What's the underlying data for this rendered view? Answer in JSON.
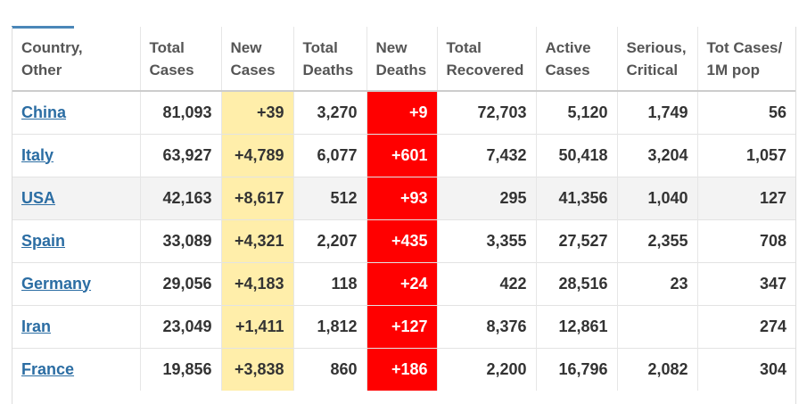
{
  "table": {
    "columns": [
      {
        "key": "country",
        "line1": "Country,",
        "line2": "Other"
      },
      {
        "key": "total_cases",
        "line1": "Total",
        "line2": "Cases"
      },
      {
        "key": "new_cases",
        "line1": "New",
        "line2": "Cases"
      },
      {
        "key": "total_deaths",
        "line1": "Total",
        "line2": "Deaths"
      },
      {
        "key": "new_deaths",
        "line1": "New",
        "line2": "Deaths"
      },
      {
        "key": "total_recovered",
        "line1": "Total",
        "line2": "Recovered"
      },
      {
        "key": "active_cases",
        "line1": "Active",
        "line2": "Cases"
      },
      {
        "key": "serious_critical",
        "line1": "Serious,",
        "line2": "Critical"
      },
      {
        "key": "tot_cases_per_1m",
        "line1": "Tot Cases/",
        "line2": "1M pop"
      }
    ],
    "rows": [
      {
        "country": "China",
        "total_cases": "81,093",
        "new_cases": "+39",
        "total_deaths": "3,270",
        "new_deaths": "+9",
        "total_recovered": "72,703",
        "active_cases": "5,120",
        "serious_critical": "1,749",
        "tot_cases_per_1m": "56"
      },
      {
        "country": "Italy",
        "total_cases": "63,927",
        "new_cases": "+4,789",
        "total_deaths": "6,077",
        "new_deaths": "+601",
        "total_recovered": "7,432",
        "active_cases": "50,418",
        "serious_critical": "3,204",
        "tot_cases_per_1m": "1,057"
      },
      {
        "country": "USA",
        "total_cases": "42,163",
        "new_cases": "+8,617",
        "total_deaths": "512",
        "new_deaths": "+93",
        "total_recovered": "295",
        "active_cases": "41,356",
        "serious_critical": "1,040",
        "tot_cases_per_1m": "127"
      },
      {
        "country": "Spain",
        "total_cases": "33,089",
        "new_cases": "+4,321",
        "total_deaths": "2,207",
        "new_deaths": "+435",
        "total_recovered": "3,355",
        "active_cases": "27,527",
        "serious_critical": "2,355",
        "tot_cases_per_1m": "708"
      },
      {
        "country": "Germany",
        "total_cases": "29,056",
        "new_cases": "+4,183",
        "total_deaths": "118",
        "new_deaths": "+24",
        "total_recovered": "422",
        "active_cases": "28,516",
        "serious_critical": "23",
        "tot_cases_per_1m": "347"
      },
      {
        "country": "Iran",
        "total_cases": "23,049",
        "new_cases": "+1,411",
        "total_deaths": "1,812",
        "new_deaths": "+127",
        "total_recovered": "8,376",
        "active_cases": "12,861",
        "serious_critical": "",
        "tot_cases_per_1m": "274"
      },
      {
        "country": "France",
        "total_cases": "19,856",
        "new_cases": "+3,838",
        "total_deaths": "860",
        "new_deaths": "+186",
        "total_recovered": "2,200",
        "active_cases": "16,796",
        "serious_critical": "2,082",
        "tot_cases_per_1m": "304"
      }
    ]
  },
  "colors": {
    "new_cases_bg": "#ffeeaa",
    "new_deaths_bg": "#ff0000",
    "link": "#2b6da3",
    "header_accent": "#4b87b8"
  }
}
